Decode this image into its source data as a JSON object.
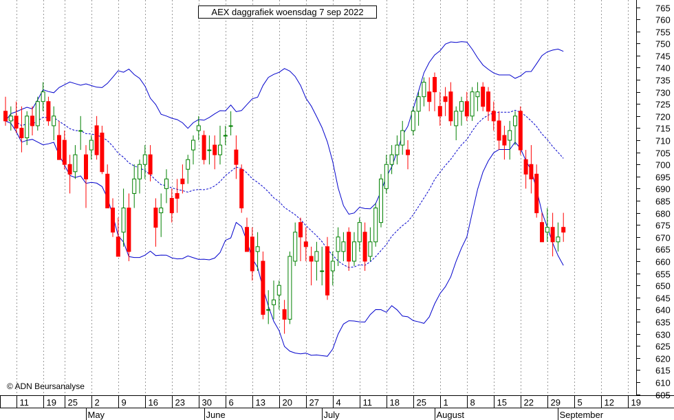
{
  "chart_data": {
    "type": "candlestick",
    "title": "AEX daggrafiek woensdag 7 sep 2022",
    "copyright": "© ADN Beursanalyse",
    "ylim": [
      603,
      767
    ],
    "y_ticks": [
      605,
      610,
      615,
      620,
      625,
      630,
      635,
      640,
      645,
      650,
      655,
      660,
      665,
      670,
      675,
      680,
      685,
      690,
      695,
      700,
      705,
      710,
      715,
      720,
      725,
      730,
      735,
      740,
      745,
      750,
      755,
      760,
      765
    ],
    "x_ticks": [
      {
        "label": "11",
        "i": 2
      },
      {
        "label": "19",
        "i": 7
      },
      {
        "label": "25",
        "i": 11
      },
      {
        "label": "2",
        "i": 16
      },
      {
        "label": "9",
        "i": 21
      },
      {
        "label": "16",
        "i": 26
      },
      {
        "label": "23",
        "i": 31
      },
      {
        "label": "30",
        "i": 36
      },
      {
        "label": "6",
        "i": 41
      },
      {
        "label": "13",
        "i": 46
      },
      {
        "label": "20",
        "i": 51
      },
      {
        "label": "27",
        "i": 56
      },
      {
        "label": "4",
        "i": 61
      },
      {
        "label": "11",
        "i": 66
      },
      {
        "label": "18",
        "i": 71
      },
      {
        "label": "25",
        "i": 76
      },
      {
        "label": "1",
        "i": 81
      },
      {
        "label": "8",
        "i": 86
      },
      {
        "label": "15",
        "i": 91
      },
      {
        "label": "22",
        "i": 96
      },
      {
        "label": "29",
        "i": 101
      },
      {
        "label": "5",
        "i": 106
      },
      {
        "label": "12",
        "i": 111
      },
      {
        "label": "19",
        "i": 116
      }
    ],
    "month_labels": [
      {
        "label": "May",
        "i": 15
      },
      {
        "label": "June",
        "i": 37
      },
      {
        "label": "July",
        "i": 59
      },
      {
        "label": "August",
        "i": 80
      },
      {
        "label": "September",
        "i": 103
      }
    ],
    "colors": {
      "up": "#008000",
      "down": "#ff0000",
      "bands": "#0000cc",
      "grid": "#999999"
    },
    "candles": [
      [
        722,
        728,
        716,
        718
      ],
      [
        718,
        724,
        714,
        720
      ],
      [
        720,
        726,
        713,
        715
      ],
      [
        715,
        724,
        705,
        711
      ],
      [
        711,
        722,
        708,
        720
      ],
      [
        720,
        724,
        712,
        716
      ],
      [
        716,
        728,
        714,
        726
      ],
      [
        726,
        734,
        722,
        730
      ],
      [
        726,
        728,
        716,
        718
      ],
      [
        716,
        724,
        710,
        720
      ],
      [
        712,
        718,
        702,
        702
      ],
      [
        710,
        714,
        698,
        700
      ],
      [
        700,
        704,
        688,
        696
      ],
      [
        697,
        708,
        694,
        704
      ],
      [
        714,
        720,
        706,
        714
      ],
      [
        704,
        708,
        682,
        694
      ],
      [
        706,
        712,
        702,
        710
      ],
      [
        716,
        720,
        702,
        704
      ],
      [
        713,
        716,
        696,
        697
      ],
      [
        696,
        700,
        682,
        682
      ],
      [
        682,
        686,
        670,
        672
      ],
      [
        670,
        678,
        662,
        662
      ],
      [
        672,
        690,
        666,
        682
      ],
      [
        682,
        688,
        660,
        664
      ],
      [
        688,
        700,
        682,
        694
      ],
      [
        694,
        702,
        688,
        700
      ],
      [
        700,
        708,
        694,
        704
      ],
      [
        704,
        708,
        693,
        696
      ],
      [
        682,
        686,
        666,
        674
      ],
      [
        680,
        688,
        670,
        682
      ],
      [
        690,
        698,
        684,
        694
      ],
      [
        686,
        690,
        676,
        680
      ],
      [
        688,
        694,
        680,
        686
      ],
      [
        694,
        700,
        688,
        692
      ],
      [
        698,
        704,
        692,
        702
      ],
      [
        706,
        712,
        700,
        710
      ],
      [
        714,
        720,
        710,
        716
      ],
      [
        712,
        714,
        700,
        702
      ],
      [
        706,
        712,
        700,
        706
      ],
      [
        708,
        712,
        698,
        704
      ],
      [
        704,
        716,
        700,
        708
      ],
      [
        712,
        716,
        708,
        712
      ],
      [
        716,
        722,
        712,
        716
      ],
      [
        706,
        712,
        694,
        700
      ],
      [
        698,
        700,
        680,
        682
      ],
      [
        674,
        678,
        664,
        664
      ],
      [
        670,
        674,
        652,
        656
      ],
      [
        664,
        672,
        656,
        666
      ],
      [
        660,
        664,
        636,
        638
      ],
      [
        640,
        648,
        634,
        640
      ],
      [
        642,
        652,
        636,
        644
      ],
      [
        646,
        652,
        640,
        650
      ],
      [
        640,
        644,
        630,
        636
      ],
      [
        636,
        664,
        634,
        662
      ],
      [
        660,
        676,
        658,
        672
      ],
      [
        676,
        678,
        660,
        670
      ],
      [
        668,
        674,
        660,
        666
      ],
      [
        662,
        666,
        650,
        660
      ],
      [
        660,
        668,
        652,
        664
      ],
      [
        656,
        666,
        650,
        656
      ],
      [
        666,
        670,
        644,
        646
      ],
      [
        656,
        664,
        650,
        660
      ],
      [
        664,
        674,
        658,
        670
      ],
      [
        664,
        672,
        660,
        668
      ],
      [
        672,
        674,
        656,
        660
      ],
      [
        660,
        672,
        658,
        668
      ],
      [
        668,
        678,
        664,
        676
      ],
      [
        672,
        676,
        656,
        660
      ],
      [
        662,
        674,
        660,
        668
      ],
      [
        668,
        684,
        666,
        682
      ],
      [
        676,
        696,
        674,
        694
      ],
      [
        690,
        704,
        688,
        700
      ],
      [
        700,
        708,
        696,
        704
      ],
      [
        704,
        712,
        700,
        708
      ],
      [
        708,
        718,
        704,
        714
      ],
      [
        706,
        710,
        698,
        704
      ],
      [
        714,
        724,
        712,
        722
      ],
      [
        722,
        730,
        716,
        728
      ],
      [
        728,
        736,
        724,
        734
      ],
      [
        730,
        736,
        722,
        726
      ],
      [
        736,
        738,
        722,
        730
      ],
      [
        724,
        730,
        716,
        720
      ],
      [
        728,
        732,
        720,
        726
      ],
      [
        730,
        734,
        716,
        718
      ],
      [
        716,
        724,
        710,
        722
      ],
      [
        722,
        728,
        716,
        726
      ],
      [
        726,
        730,
        718,
        720
      ],
      [
        720,
        732,
        718,
        730
      ],
      [
        728,
        734,
        722,
        730
      ],
      [
        732,
        734,
        722,
        724
      ],
      [
        730,
        732,
        718,
        722
      ],
      [
        722,
        726,
        714,
        718
      ],
      [
        718,
        722,
        706,
        710
      ],
      [
        712,
        716,
        702,
        708
      ],
      [
        710,
        718,
        702,
        714
      ],
      [
        716,
        722,
        708,
        720
      ],
      [
        722,
        724,
        704,
        706
      ],
      [
        702,
        706,
        690,
        696
      ],
      [
        700,
        708,
        688,
        694
      ],
      [
        696,
        700,
        678,
        680
      ],
      [
        676,
        680,
        668,
        668
      ],
      [
        672,
        682,
        668,
        674
      ],
      [
        674,
        680,
        662,
        668
      ],
      [
        668,
        676,
        664,
        670
      ],
      [
        674,
        680,
        668,
        672
      ]
    ]
  }
}
